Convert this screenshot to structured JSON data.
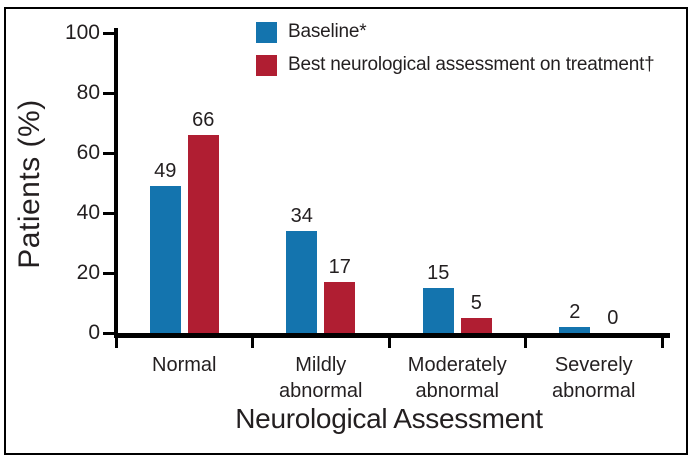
{
  "chart_data": {
    "type": "bar",
    "title": "",
    "xlabel": "Neurological Assessment",
    "ylabel": "Patients (%)",
    "categories": [
      "Normal",
      "Mildly abnormal",
      "Moderately abnormal",
      "Severely abnormal"
    ],
    "category_label_lines": [
      [
        "Normal"
      ],
      [
        "Mildly",
        "abnormal"
      ],
      [
        "Moderately",
        "abnormal"
      ],
      [
        "Severely",
        "abnormal"
      ]
    ],
    "series": [
      {
        "name": "Baseline*",
        "color": "#1474AE",
        "values": [
          49,
          34,
          15,
          2
        ]
      },
      {
        "name": "Best neurological assessment on treatment†",
        "color": "#B01E32",
        "values": [
          66,
          17,
          5,
          0
        ]
      }
    ],
    "yticks": [
      0,
      20,
      40,
      60,
      80,
      100
    ],
    "ylim": [
      0,
      100
    ],
    "grid": false,
    "legend_position": "top-center",
    "value_labels_shown": true
  },
  "colors": {
    "background": "#FFFFFF",
    "frame": "#000000",
    "axis": "#000000",
    "text": "#231F20",
    "baseline_blue": "#1474AE",
    "treatment_red": "#B01E32"
  }
}
